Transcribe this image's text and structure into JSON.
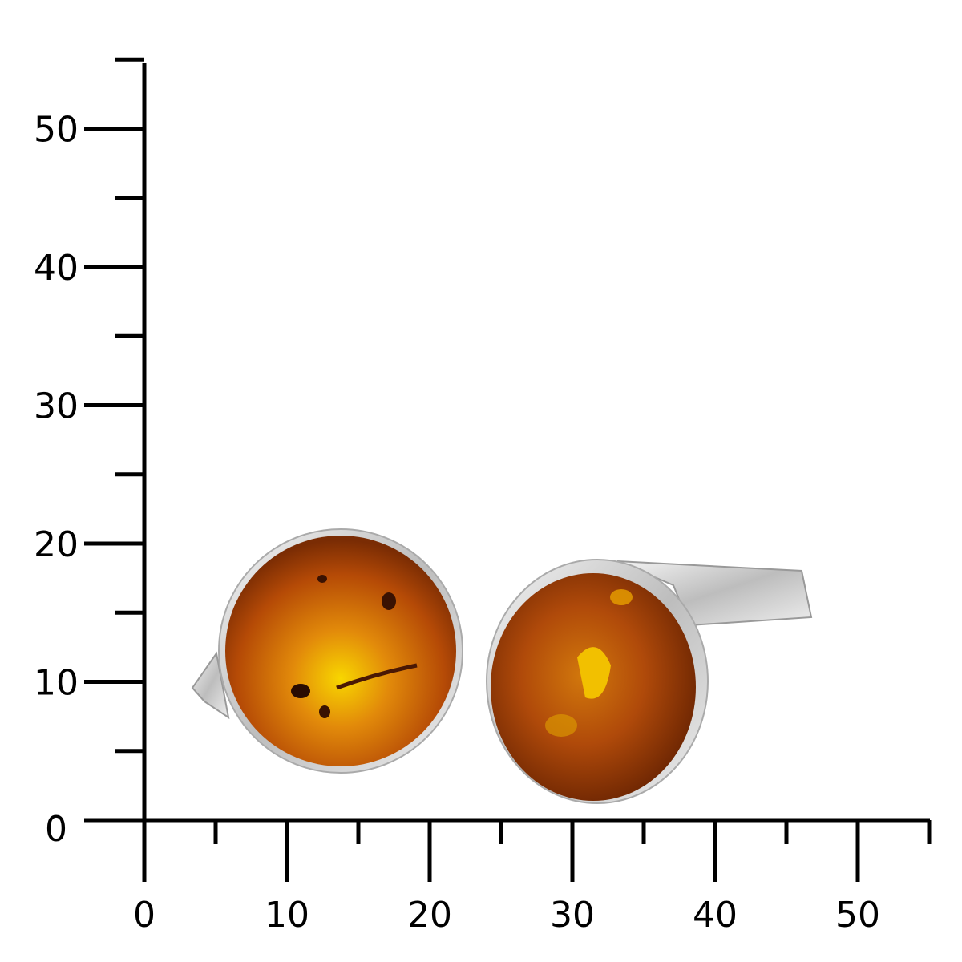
{
  "scale": {
    "unit_ticks_major": 10,
    "unit_ticks_minor": 5,
    "range": [
      0,
      55
    ],
    "y_labels": [
      "0",
      "10",
      "20",
      "30",
      "40",
      "50"
    ],
    "x_labels": [
      "0",
      "10",
      "20",
      "30",
      "40",
      "50"
    ]
  },
  "product": {
    "subject": "amber-cufflinks",
    "colors": {
      "amber_light": "#f5c400",
      "amber_mid": "#d06a08",
      "amber_dark": "#6a2402",
      "silver": "#d8d8d8"
    }
  }
}
